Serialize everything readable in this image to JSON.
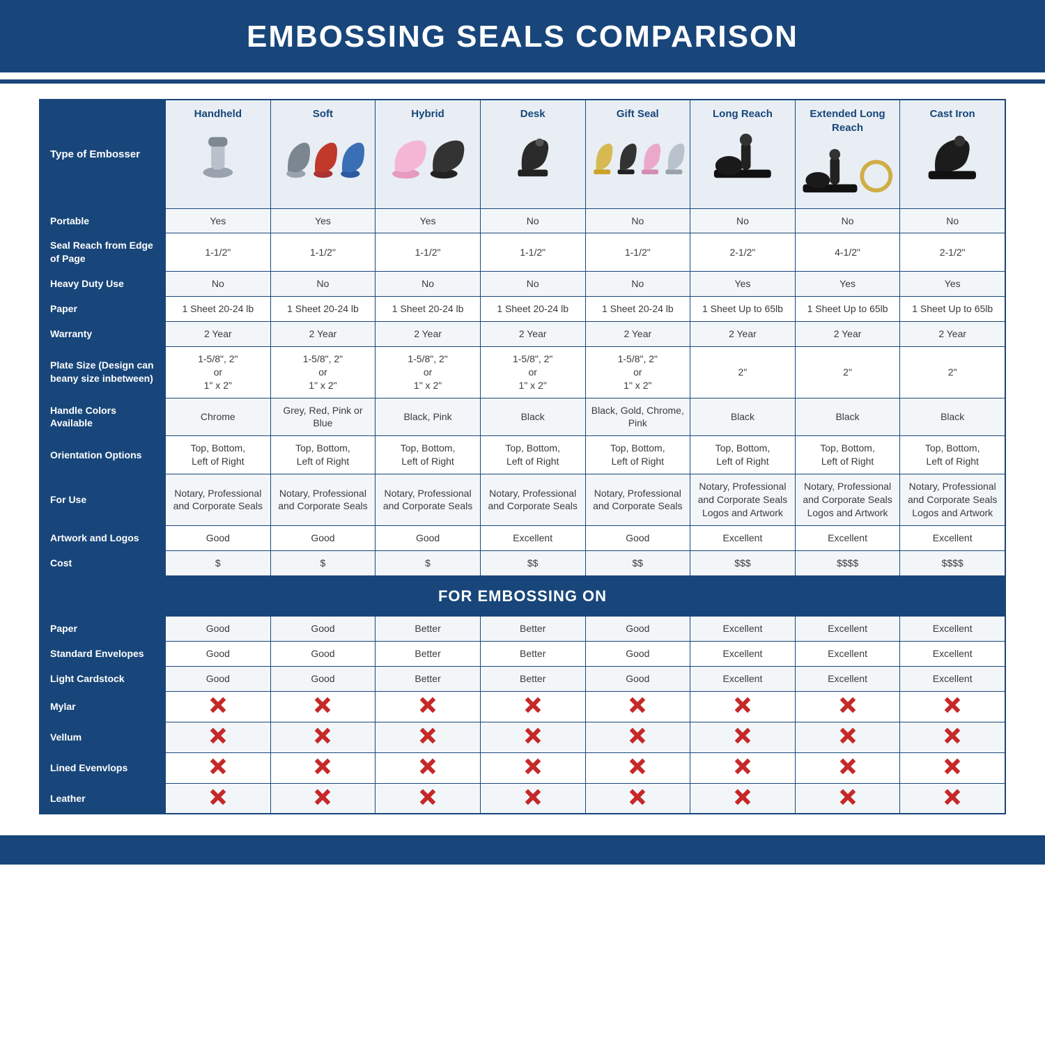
{
  "page": {
    "title": "EMBOSSING SEALS COMPARISON",
    "title_bg": "#18467a",
    "title_color": "#ffffff",
    "title_fontsize": 44,
    "corner_label": "Type of Embosser",
    "section_label": "FOR EMBOSSING ON",
    "border_color": "#18467a",
    "zebra_odd": "#f3f6f9",
    "zebra_even": "#ffffff",
    "label_bg": "#18467a",
    "label_color": "#ffffff",
    "header_bg": "#e8eef4",
    "x_color": "#c62828"
  },
  "columns": [
    {
      "key": "handheld",
      "label": "Handheld",
      "svg": "handheld"
    },
    {
      "key": "soft",
      "label": "Soft",
      "svg": "soft"
    },
    {
      "key": "hybrid",
      "label": "Hybrid",
      "svg": "hybrid"
    },
    {
      "key": "desk",
      "label": "Desk",
      "svg": "desk"
    },
    {
      "key": "gift",
      "label": "Gift Seal",
      "svg": "gift"
    },
    {
      "key": "long",
      "label": "Long Reach",
      "svg": "longreach"
    },
    {
      "key": "ext",
      "label": "Extended Long Reach",
      "svg": "extlong"
    },
    {
      "key": "cast",
      "label": "Cast Iron",
      "svg": "castiron"
    }
  ],
  "rows_top": [
    {
      "label": "Portable",
      "cells": [
        "Yes",
        "Yes",
        "Yes",
        "No",
        "No",
        "No",
        "No",
        "No"
      ]
    },
    {
      "label": "Seal Reach from Edge of Page",
      "cells": [
        "1-1/2\"",
        "1-1/2\"",
        "1-1/2\"",
        "1-1/2\"",
        "1-1/2\"",
        "2-1/2\"",
        "4-1/2\"",
        "2-1/2\""
      ]
    },
    {
      "label": "Heavy Duty Use",
      "cells": [
        "No",
        "No",
        "No",
        "No",
        "No",
        "Yes",
        "Yes",
        "Yes"
      ]
    },
    {
      "label": "Paper",
      "cells": [
        "1 Sheet 20-24 lb",
        "1 Sheet 20-24 lb",
        "1 Sheet 20-24 lb",
        "1 Sheet 20-24 lb",
        "1 Sheet 20-24 lb",
        "1 Sheet Up to 65lb",
        "1 Sheet Up to 65lb",
        "1 Sheet Up to 65lb"
      ]
    },
    {
      "label": "Warranty",
      "cells": [
        "2 Year",
        "2 Year",
        "2 Year",
        "2 Year",
        "2 Year",
        "2 Year",
        "2 Year",
        "2 Year"
      ]
    },
    {
      "label": "Plate Size (Design can beany size inbetween)",
      "cells": [
        "1-5/8\", 2\"\nor\n1\" x 2\"",
        "1-5/8\", 2\"\nor\n1\" x 2\"",
        "1-5/8\", 2\"\nor\n1\" x 2\"",
        "1-5/8\", 2\"\nor\n1\" x 2\"",
        "1-5/8\", 2\"\nor\n1\" x 2\"",
        "2\"",
        "2\"",
        "2\""
      ]
    },
    {
      "label": "Handle Colors Available",
      "cells": [
        "Chrome",
        "Grey, Red, Pink or Blue",
        "Black, Pink",
        "Black",
        "Black, Gold, Chrome, Pink",
        "Black",
        "Black",
        "Black"
      ]
    },
    {
      "label": "Orientation Options",
      "cells": [
        "Top, Bottom,\nLeft of Right",
        "Top, Bottom,\nLeft of Right",
        "Top, Bottom,\nLeft of Right",
        "Top, Bottom,\nLeft of Right",
        "Top, Bottom,\nLeft of Right",
        "Top, Bottom,\nLeft of Right",
        "Top, Bottom,\nLeft of Right",
        "Top, Bottom,\nLeft of Right"
      ]
    },
    {
      "label": "For Use",
      "cells": [
        "Notary, Professional and Corporate Seals",
        "Notary, Professional and Corporate Seals",
        "Notary, Professional and Corporate Seals",
        "Notary, Professional and Corporate Seals",
        "Notary, Professional and Corporate Seals",
        "Notary, Professional and Corporate Seals Logos and Artwork",
        "Notary, Professional and Corporate Seals Logos and Artwork",
        "Notary, Professional and Corporate Seals Logos and Artwork"
      ]
    },
    {
      "label": "Artwork and Logos",
      "cells": [
        "Good",
        "Good",
        "Good",
        "Excellent",
        "Good",
        "Excellent",
        "Excellent",
        "Excellent"
      ]
    },
    {
      "label": "Cost",
      "cells": [
        "$",
        "$",
        "$",
        "$$",
        "$$",
        "$$$",
        "$$$$",
        "$$$$"
      ]
    }
  ],
  "rows_bottom": [
    {
      "label": "Paper",
      "cells": [
        "Good",
        "Good",
        "Better",
        "Better",
        "Good",
        "Excellent",
        "Excellent",
        "Excellent"
      ]
    },
    {
      "label": "Standard Envelopes",
      "cells": [
        "Good",
        "Good",
        "Better",
        "Better",
        "Good",
        "Excellent",
        "Excellent",
        "Excellent"
      ]
    },
    {
      "label": "Light Cardstock",
      "cells": [
        "Good",
        "Good",
        "Better",
        "Better",
        "Good",
        "Excellent",
        "Excellent",
        "Excellent"
      ]
    },
    {
      "label": "Mylar",
      "cells": [
        "X",
        "X",
        "X",
        "X",
        "X",
        "X",
        "X",
        "X"
      ]
    },
    {
      "label": "Vellum",
      "cells": [
        "X",
        "X",
        "X",
        "X",
        "X",
        "X",
        "X",
        "X"
      ]
    },
    {
      "label": "Lined Evenvlops",
      "cells": [
        "X",
        "X",
        "X",
        "X",
        "X",
        "X",
        "X",
        "X"
      ]
    },
    {
      "label": "Leather",
      "cells": [
        "X",
        "X",
        "X",
        "X",
        "X",
        "X",
        "X",
        "X"
      ]
    }
  ]
}
